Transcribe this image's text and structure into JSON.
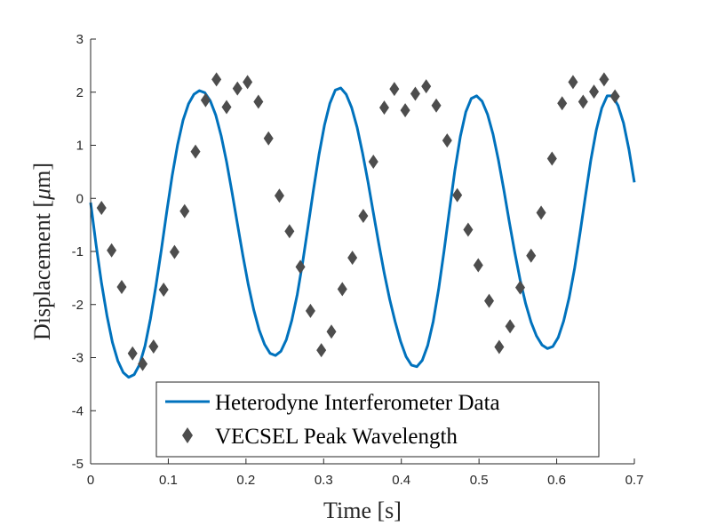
{
  "chart_data": {
    "type": "line",
    "title": "",
    "xlabel": "Time [s]",
    "ylabel_prefix": "Displacement [",
    "ylabel_mu": "μ",
    "ylabel_suffix": "m]",
    "xlim": [
      0,
      0.7
    ],
    "ylim": [
      -5,
      3
    ],
    "xticks": [
      0,
      0.1,
      0.2,
      0.3,
      0.4,
      0.5,
      0.6,
      0.7
    ],
    "xtick_labels": [
      "0",
      "0.1",
      "0.2",
      "0.3",
      "0.4",
      "0.5",
      "0.6",
      "0.7"
    ],
    "yticks": [
      -5,
      -4,
      -3,
      -2,
      -1,
      0,
      1,
      2,
      3
    ],
    "ytick_labels": [
      "-5",
      "-4",
      "-3",
      "-2",
      "-1",
      "0",
      "1",
      "2",
      "3"
    ],
    "grid": false,
    "legend_position": "bottom-center",
    "series": [
      {
        "name": "Heterodyne Interferometer Data",
        "kind": "line",
        "color": "#0072BD",
        "x": [
          0.0,
          0.007,
          0.014,
          0.021,
          0.028,
          0.035,
          0.042,
          0.049,
          0.056,
          0.063,
          0.07,
          0.077,
          0.084,
          0.091,
          0.098,
          0.105,
          0.112,
          0.119,
          0.126,
          0.133,
          0.14,
          0.147,
          0.154,
          0.161,
          0.168,
          0.175,
          0.182,
          0.189,
          0.196,
          0.203,
          0.21,
          0.217,
          0.224,
          0.231,
          0.238,
          0.245,
          0.252,
          0.259,
          0.266,
          0.273,
          0.28,
          0.287,
          0.294,
          0.301,
          0.308,
          0.315,
          0.322,
          0.329,
          0.336,
          0.343,
          0.35,
          0.357,
          0.364,
          0.371,
          0.378,
          0.385,
          0.392,
          0.399,
          0.406,
          0.413,
          0.42,
          0.427,
          0.434,
          0.441,
          0.448,
          0.455,
          0.462,
          0.469,
          0.476,
          0.483,
          0.49,
          0.497,
          0.504,
          0.511,
          0.518,
          0.525,
          0.532,
          0.539,
          0.546,
          0.553,
          0.56,
          0.567,
          0.574,
          0.581,
          0.588,
          0.595,
          0.602,
          0.609,
          0.616,
          0.623,
          0.63,
          0.637,
          0.644,
          0.651,
          0.658,
          0.665,
          0.672,
          0.679,
          0.686,
          0.693,
          0.7
        ],
        "y": [
          -0.08,
          -0.87,
          -1.59,
          -2.21,
          -2.71,
          -3.06,
          -3.28,
          -3.37,
          -3.32,
          -3.13,
          -2.78,
          -2.27,
          -1.66,
          -0.97,
          -0.25,
          0.43,
          1.01,
          1.47,
          1.78,
          1.96,
          2.03,
          1.99,
          1.84,
          1.57,
          1.18,
          0.69,
          0.12,
          -0.48,
          -1.08,
          -1.63,
          -2.1,
          -2.48,
          -2.75,
          -2.92,
          -2.96,
          -2.88,
          -2.66,
          -2.3,
          -1.81,
          -1.2,
          -0.52,
          0.17,
          0.82,
          1.38,
          1.79,
          2.04,
          2.08,
          1.96,
          1.71,
          1.34,
          0.86,
          0.32,
          -0.27,
          -0.86,
          -1.41,
          -1.9,
          -2.32,
          -2.69,
          -2.98,
          -3.14,
          -3.17,
          -3.05,
          -2.77,
          -2.32,
          -1.71,
          -0.99,
          -0.22,
          0.53,
          1.17,
          1.63,
          1.88,
          1.93,
          1.83,
          1.58,
          1.21,
          0.72,
          0.16,
          -0.44,
          -1.02,
          -1.54,
          -1.98,
          -2.33,
          -2.59,
          -2.76,
          -2.83,
          -2.79,
          -2.62,
          -2.31,
          -1.87,
          -1.32,
          -0.66,
          0.04,
          0.72,
          1.29,
          1.7,
          1.93,
          1.93,
          1.75,
          1.42,
          0.92,
          0.3
        ]
      },
      {
        "name": "VECSEL Peak Wavelength",
        "kind": "scatter",
        "marker": "diamond",
        "color": "#4D4D4D",
        "x": [
          0.014,
          0.027,
          0.04,
          0.054,
          0.067,
          0.081,
          0.094,
          0.108,
          0.121,
          0.135,
          0.148,
          0.162,
          0.175,
          0.189,
          0.202,
          0.216,
          0.229,
          0.243,
          0.256,
          0.27,
          0.283,
          0.297,
          0.31,
          0.324,
          0.337,
          0.351,
          0.364,
          0.378,
          0.391,
          0.405,
          0.418,
          0.432,
          0.445,
          0.459,
          0.472,
          0.486,
          0.499,
          0.513,
          0.526,
          0.54,
          0.553,
          0.567,
          0.58,
          0.594,
          0.607,
          0.621,
          0.634,
          0.648,
          0.661,
          0.675
        ],
        "y": [
          -0.18,
          -0.98,
          -1.67,
          -2.92,
          -3.12,
          -2.79,
          -1.72,
          -1.01,
          -0.24,
          0.88,
          1.85,
          2.24,
          1.72,
          2.07,
          2.19,
          1.82,
          1.13,
          0.05,
          -0.62,
          -1.29,
          -2.12,
          -2.86,
          -2.51,
          -1.71,
          -1.12,
          -0.33,
          0.69,
          1.71,
          2.06,
          1.66,
          1.97,
          2.11,
          1.75,
          1.09,
          0.06,
          -0.59,
          -1.26,
          -1.93,
          -2.8,
          -2.41,
          -1.68,
          -1.08,
          -0.27,
          0.75,
          1.79,
          2.19,
          1.82,
          2.01,
          2.24,
          1.92
        ]
      }
    ]
  }
}
